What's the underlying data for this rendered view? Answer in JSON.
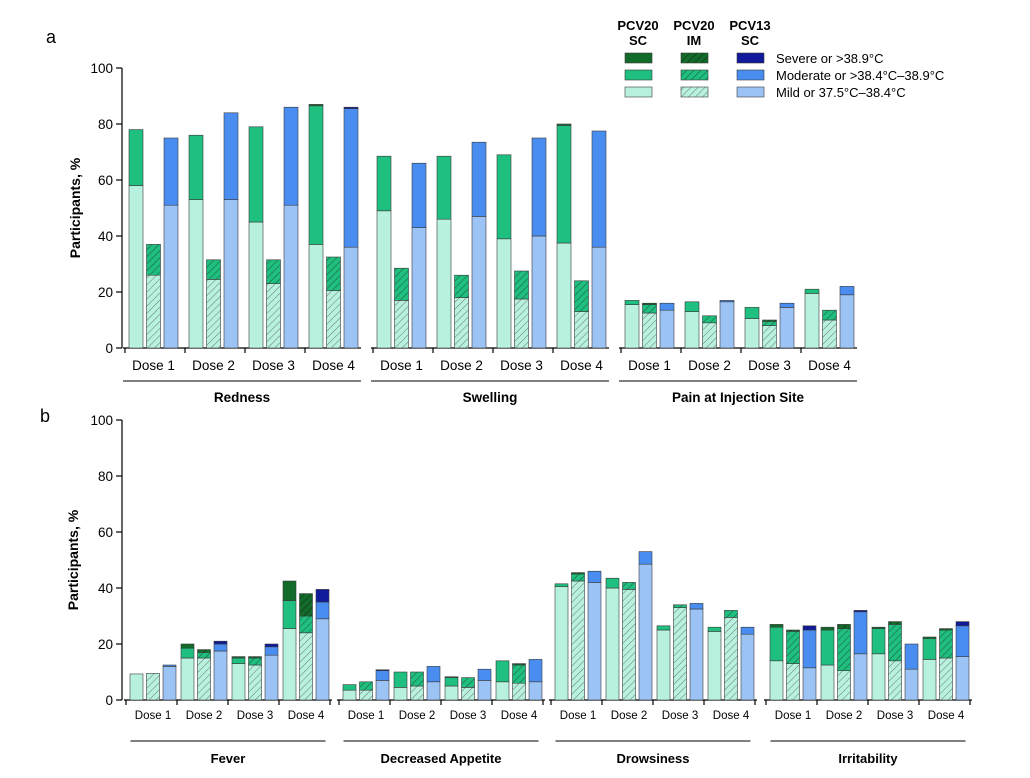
{
  "colors": {
    "pcv20_sc": {
      "mild": "#b8f2df",
      "moderate": "#1fbf7f",
      "severe": "#136b2b"
    },
    "pcv20_im": {
      "mild": "#b8f2df",
      "moderate": "#1fbf7f",
      "severe": "#136b2b"
    },
    "pcv13_sc": {
      "mild": "#9cc3f5",
      "moderate": "#4a8df0",
      "severe": "#101a9a"
    }
  },
  "legend": {
    "headers": [
      {
        "key": "pcv20_sc",
        "text": "PCV20\nSC"
      },
      {
        "key": "pcv20_im",
        "text": "PCV20\nIM"
      },
      {
        "key": "pcv13_sc",
        "text": "PCV13\nSC"
      }
    ],
    "rows": [
      {
        "key": "severe",
        "label": "Severe or >38.9°C"
      },
      {
        "key": "moderate",
        "label": "Moderate or >38.4°C–38.9°C"
      },
      {
        "key": "mild",
        "label": "Mild or 37.5°C–38.4°C"
      }
    ]
  },
  "chart_data": [
    {
      "panel_label": "a",
      "type": "bar",
      "stacked": true,
      "ylabel": "Participants, %",
      "ylim": [
        0,
        100
      ],
      "yticks": [
        0,
        20,
        40,
        60,
        80,
        100
      ],
      "groups": [
        {
          "name": "Redness",
          "doses": [
            {
              "label": "Dose 1",
              "bars": [
                {
                  "group": "pcv20_sc",
                  "mild": 58,
                  "moderate": 20,
                  "severe": 0
                },
                {
                  "group": "pcv20_im",
                  "mild": 26,
                  "moderate": 11,
                  "severe": 0
                },
                {
                  "group": "pcv13_sc",
                  "mild": 51,
                  "moderate": 24,
                  "severe": 0
                }
              ]
            },
            {
              "label": "Dose 2",
              "bars": [
                {
                  "group": "pcv20_sc",
                  "mild": 53,
                  "moderate": 23,
                  "severe": 0
                },
                {
                  "group": "pcv20_im",
                  "mild": 24.5,
                  "moderate": 7,
                  "severe": 0
                },
                {
                  "group": "pcv13_sc",
                  "mild": 53,
                  "moderate": 31,
                  "severe": 0
                }
              ]
            },
            {
              "label": "Dose 3",
              "bars": [
                {
                  "group": "pcv20_sc",
                  "mild": 45,
                  "moderate": 34,
                  "severe": 0
                },
                {
                  "group": "pcv20_im",
                  "mild": 23,
                  "moderate": 8.5,
                  "severe": 0
                },
                {
                  "group": "pcv13_sc",
                  "mild": 51,
                  "moderate": 35,
                  "severe": 0
                }
              ]
            },
            {
              "label": "Dose 4",
              "bars": [
                {
                  "group": "pcv20_sc",
                  "mild": 37,
                  "moderate": 49.5,
                  "severe": 0.5
                },
                {
                  "group": "pcv20_im",
                  "mild": 20.5,
                  "moderate": 12,
                  "severe": 0
                },
                {
                  "group": "pcv13_sc",
                  "mild": 36,
                  "moderate": 49.5,
                  "severe": 0.5
                }
              ]
            }
          ]
        },
        {
          "name": "Swelling",
          "doses": [
            {
              "label": "Dose 1",
              "bars": [
                {
                  "group": "pcv20_sc",
                  "mild": 49,
                  "moderate": 19.5,
                  "severe": 0
                },
                {
                  "group": "pcv20_im",
                  "mild": 17,
                  "moderate": 11.5,
                  "severe": 0
                },
                {
                  "group": "pcv13_sc",
                  "mild": 43,
                  "moderate": 23,
                  "severe": 0
                }
              ]
            },
            {
              "label": "Dose 2",
              "bars": [
                {
                  "group": "pcv20_sc",
                  "mild": 46,
                  "moderate": 22.5,
                  "severe": 0
                },
                {
                  "group": "pcv20_im",
                  "mild": 18,
                  "moderate": 8,
                  "severe": 0
                },
                {
                  "group": "pcv13_sc",
                  "mild": 47,
                  "moderate": 26.5,
                  "severe": 0
                }
              ]
            },
            {
              "label": "Dose 3",
              "bars": [
                {
                  "group": "pcv20_sc",
                  "mild": 39,
                  "moderate": 30,
                  "severe": 0
                },
                {
                  "group": "pcv20_im",
                  "mild": 17.5,
                  "moderate": 10,
                  "severe": 0
                },
                {
                  "group": "pcv13_sc",
                  "mild": 40,
                  "moderate": 35,
                  "severe": 0
                }
              ]
            },
            {
              "label": "Dose 4",
              "bars": [
                {
                  "group": "pcv20_sc",
                  "mild": 37.5,
                  "moderate": 42,
                  "severe": 0.5
                },
                {
                  "group": "pcv20_im",
                  "mild": 13,
                  "moderate": 11,
                  "severe": 0
                },
                {
                  "group": "pcv13_sc",
                  "mild": 36,
                  "moderate": 41.5,
                  "severe": 0
                }
              ]
            }
          ]
        },
        {
          "name": "Pain at Injection Site",
          "doses": [
            {
              "label": "Dose 1",
              "bars": [
                {
                  "group": "pcv20_sc",
                  "mild": 15.5,
                  "moderate": 1.5,
                  "severe": 0
                },
                {
                  "group": "pcv20_im",
                  "mild": 12.5,
                  "moderate": 3,
                  "severe": 0.5
                },
                {
                  "group": "pcv13_sc",
                  "mild": 13.5,
                  "moderate": 2.5,
                  "severe": 0
                }
              ]
            },
            {
              "label": "Dose 2",
              "bars": [
                {
                  "group": "pcv20_sc",
                  "mild": 13,
                  "moderate": 3.5,
                  "severe": 0
                },
                {
                  "group": "pcv20_im",
                  "mild": 9,
                  "moderate": 2.5,
                  "severe": 0
                },
                {
                  "group": "pcv13_sc",
                  "mild": 16.5,
                  "moderate": 0.5,
                  "severe": 0
                }
              ]
            },
            {
              "label": "Dose 3",
              "bars": [
                {
                  "group": "pcv20_sc",
                  "mild": 10.5,
                  "moderate": 4,
                  "severe": 0
                },
                {
                  "group": "pcv20_im",
                  "mild": 8,
                  "moderate": 1.5,
                  "severe": 0.5
                },
                {
                  "group": "pcv13_sc",
                  "mild": 14.5,
                  "moderate": 1.5,
                  "severe": 0
                }
              ]
            },
            {
              "label": "Dose 4",
              "bars": [
                {
                  "group": "pcv20_sc",
                  "mild": 19.5,
                  "moderate": 1.5,
                  "severe": 0
                },
                {
                  "group": "pcv20_im",
                  "mild": 10,
                  "moderate": 3.5,
                  "severe": 0
                },
                {
                  "group": "pcv13_sc",
                  "mild": 19,
                  "moderate": 3,
                  "severe": 0
                }
              ]
            }
          ]
        }
      ]
    },
    {
      "panel_label": "b",
      "type": "bar",
      "stacked": true,
      "ylabel": "Participants, %",
      "ylim": [
        0,
        100
      ],
      "yticks": [
        0,
        20,
        40,
        60,
        80,
        100
      ],
      "groups": [
        {
          "name": "Fever",
          "doses": [
            {
              "label": "Dose 1",
              "bars": [
                {
                  "group": "pcv20_sc",
                  "mild": 9.3,
                  "moderate": 0,
                  "severe": 0
                },
                {
                  "group": "pcv20_im",
                  "mild": 9.5,
                  "moderate": 0,
                  "severe": 0
                },
                {
                  "group": "pcv13_sc",
                  "mild": 12,
                  "moderate": 0.5,
                  "severe": 0
                }
              ]
            },
            {
              "label": "Dose 2",
              "bars": [
                {
                  "group": "pcv20_sc",
                  "mild": 15,
                  "moderate": 3.5,
                  "severe": 1.5
                },
                {
                  "group": "pcv20_im",
                  "mild": 15,
                  "moderate": 2,
                  "severe": 1
                },
                {
                  "group": "pcv13_sc",
                  "mild": 17.5,
                  "moderate": 2.5,
                  "severe": 1
                }
              ]
            },
            {
              "label": "Dose 3",
              "bars": [
                {
                  "group": "pcv20_sc",
                  "mild": 13,
                  "moderate": 2,
                  "severe": 0.5
                },
                {
                  "group": "pcv20_im",
                  "mild": 12.5,
                  "moderate": 2.5,
                  "severe": 0.5
                },
                {
                  "group": "pcv13_sc",
                  "mild": 16,
                  "moderate": 3,
                  "severe": 1
                }
              ]
            },
            {
              "label": "Dose 4",
              "bars": [
                {
                  "group": "pcv20_sc",
                  "mild": 25.5,
                  "moderate": 10,
                  "severe": 7
                },
                {
                  "group": "pcv20_im",
                  "mild": 24,
                  "moderate": 6,
                  "severe": 8
                },
                {
                  "group": "pcv13_sc",
                  "mild": 29,
                  "moderate": 6,
                  "severe": 4.5
                }
              ]
            }
          ]
        },
        {
          "name": "Decreased Appetite",
          "doses": [
            {
              "label": "Dose 1",
              "bars": [
                {
                  "group": "pcv20_sc",
                  "mild": 3.5,
                  "moderate": 2,
                  "severe": 0
                },
                {
                  "group": "pcv20_im",
                  "mild": 3.5,
                  "moderate": 3,
                  "severe": 0
                },
                {
                  "group": "pcv13_sc",
                  "mild": 7,
                  "moderate": 3.5,
                  "severe": 0.3
                }
              ]
            },
            {
              "label": "Dose 2",
              "bars": [
                {
                  "group": "pcv20_sc",
                  "mild": 4.5,
                  "moderate": 5.5,
                  "severe": 0
                },
                {
                  "group": "pcv20_im",
                  "mild": 5,
                  "moderate": 5,
                  "severe": 0
                },
                {
                  "group": "pcv13_sc",
                  "mild": 6.5,
                  "moderate": 5.5,
                  "severe": 0
                }
              ]
            },
            {
              "label": "Dose 3",
              "bars": [
                {
                  "group": "pcv20_sc",
                  "mild": 5,
                  "moderate": 3,
                  "severe": 0.3
                },
                {
                  "group": "pcv20_im",
                  "mild": 4.5,
                  "moderate": 3.5,
                  "severe": 0
                },
                {
                  "group": "pcv13_sc",
                  "mild": 7,
                  "moderate": 4,
                  "severe": 0
                }
              ]
            },
            {
              "label": "Dose 4",
              "bars": [
                {
                  "group": "pcv20_sc",
                  "mild": 6.5,
                  "moderate": 7.5,
                  "severe": 0
                },
                {
                  "group": "pcv20_im",
                  "mild": 6,
                  "moderate": 6.5,
                  "severe": 0.5
                },
                {
                  "group": "pcv13_sc",
                  "mild": 6.5,
                  "moderate": 8,
                  "severe": 0
                }
              ]
            }
          ]
        },
        {
          "name": "Drowsiness",
          "doses": [
            {
              "label": "Dose 1",
              "bars": [
                {
                  "group": "pcv20_sc",
                  "mild": 40.5,
                  "moderate": 1,
                  "severe": 0
                },
                {
                  "group": "pcv20_im",
                  "mild": 42.5,
                  "moderate": 2.5,
                  "severe": 0.5
                },
                {
                  "group": "pcv13_sc",
                  "mild": 42,
                  "moderate": 4,
                  "severe": 0
                }
              ]
            },
            {
              "label": "Dose 2",
              "bars": [
                {
                  "group": "pcv20_sc",
                  "mild": 40,
                  "moderate": 3.5,
                  "severe": 0
                },
                {
                  "group": "pcv20_im",
                  "mild": 39.5,
                  "moderate": 2.5,
                  "severe": 0
                },
                {
                  "group": "pcv13_sc",
                  "mild": 48.5,
                  "moderate": 4.5,
                  "severe": 0
                }
              ]
            },
            {
              "label": "Dose 3",
              "bars": [
                {
                  "group": "pcv20_sc",
                  "mild": 25,
                  "moderate": 1.5,
                  "severe": 0
                },
                {
                  "group": "pcv20_im",
                  "mild": 33,
                  "moderate": 1,
                  "severe": 0
                },
                {
                  "group": "pcv13_sc",
                  "mild": 32.5,
                  "moderate": 2,
                  "severe": 0
                }
              ]
            },
            {
              "label": "Dose 4",
              "bars": [
                {
                  "group": "pcv20_sc",
                  "mild": 24.5,
                  "moderate": 1.5,
                  "severe": 0
                },
                {
                  "group": "pcv20_im",
                  "mild": 29.5,
                  "moderate": 2.5,
                  "severe": 0
                },
                {
                  "group": "pcv13_sc",
                  "mild": 23.5,
                  "moderate": 2.5,
                  "severe": 0
                }
              ]
            }
          ]
        },
        {
          "name": "Irritability",
          "doses": [
            {
              "label": "Dose 1",
              "bars": [
                {
                  "group": "pcv20_sc",
                  "mild": 14,
                  "moderate": 12,
                  "severe": 1
                },
                {
                  "group": "pcv20_im",
                  "mild": 13,
                  "moderate": 11.5,
                  "severe": 0.5
                },
                {
                  "group": "pcv13_sc",
                  "mild": 11.5,
                  "moderate": 13.5,
                  "severe": 1.5
                }
              ]
            },
            {
              "label": "Dose 2",
              "bars": [
                {
                  "group": "pcv20_sc",
                  "mild": 12.5,
                  "moderate": 12.5,
                  "severe": 1
                },
                {
                  "group": "pcv20_im",
                  "mild": 10.5,
                  "moderate": 15,
                  "severe": 1.5
                },
                {
                  "group": "pcv13_sc",
                  "mild": 16.5,
                  "moderate": 15,
                  "severe": 0.5
                }
              ]
            },
            {
              "label": "Dose 3",
              "bars": [
                {
                  "group": "pcv20_sc",
                  "mild": 16.5,
                  "moderate": 9,
                  "severe": 0.5
                },
                {
                  "group": "pcv20_im",
                  "mild": 14,
                  "moderate": 13,
                  "severe": 1
                },
                {
                  "group": "pcv13_sc",
                  "mild": 11,
                  "moderate": 9,
                  "severe": 0
                }
              ]
            },
            {
              "label": "Dose 4",
              "bars": [
                {
                  "group": "pcv20_sc",
                  "mild": 14.5,
                  "moderate": 7.5,
                  "severe": 0.5
                },
                {
                  "group": "pcv20_im",
                  "mild": 15,
                  "moderate": 10,
                  "severe": 0.5
                },
                {
                  "group": "pcv13_sc",
                  "mild": 15.5,
                  "moderate": 11,
                  "severe": 1.5
                }
              ]
            }
          ]
        }
      ]
    }
  ]
}
